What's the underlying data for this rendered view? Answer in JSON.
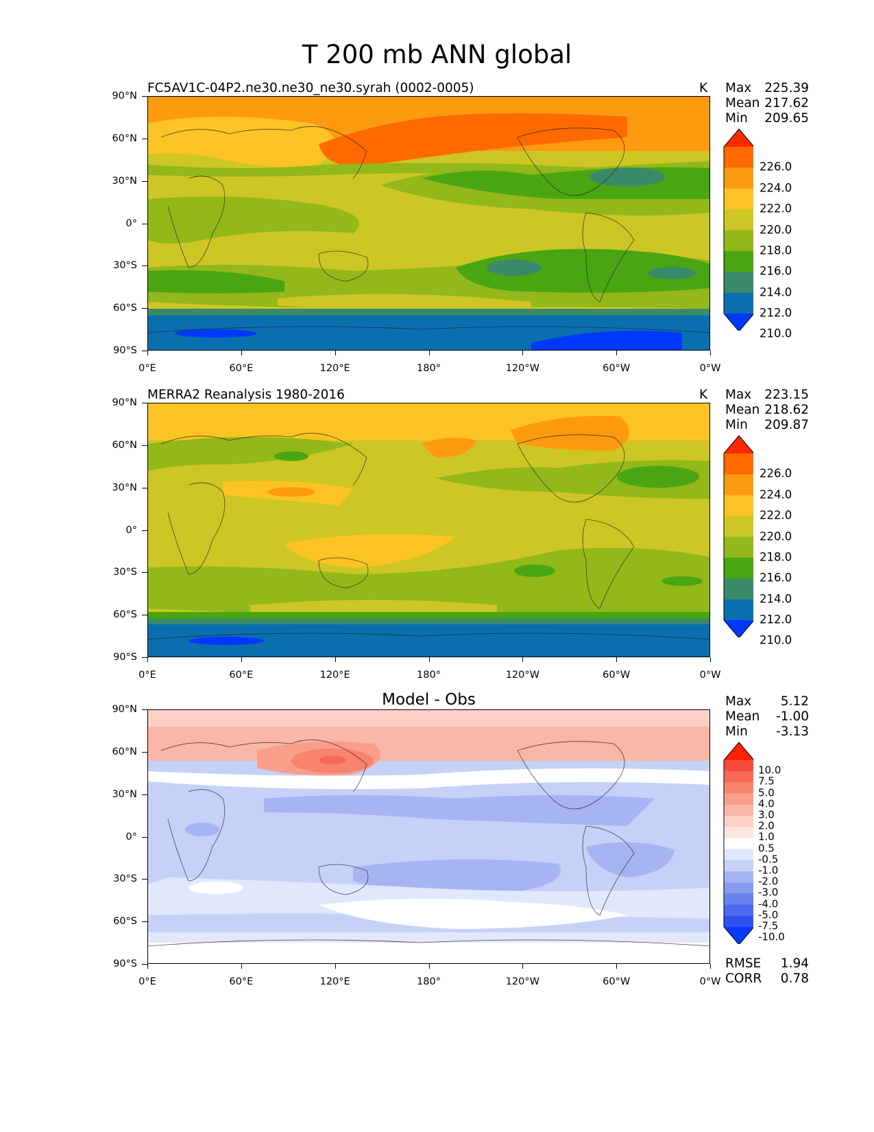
{
  "figure": {
    "title": "T 200 mb ANN global"
  },
  "axes": {
    "y_ticks": [
      "90°N",
      "60°N",
      "30°N",
      "0°",
      "30°S",
      "60°S",
      "90°S"
    ],
    "x_ticks": [
      "0°E",
      "60°E",
      "120°E",
      "180°",
      "120°W",
      "60°W",
      "0°W"
    ]
  },
  "panels": [
    {
      "id": "test",
      "title": "FC5AV1C-04P2.ne30.ne30_ne30.syrah (0002-0005)",
      "units": "K",
      "stats": {
        "max_label": "Max",
        "max": "225.39",
        "mean_label": "Mean",
        "mean": "217.62",
        "min_label": "Min",
        "min": "209.65"
      },
      "colorbar": {
        "labels": [
          "226.0",
          "224.0",
          "222.0",
          "220.0",
          "218.0",
          "216.0",
          "214.0",
          "212.0",
          "210.0"
        ],
        "colors": [
          "#ff2a00",
          "#ff6a00",
          "#fe9a10",
          "#fbc323",
          "#cdc624",
          "#92b81a",
          "#4aa512",
          "#3a8a6a",
          "#0a6fae",
          "#0038ff"
        ]
      },
      "dominant_color": "#cdc624"
    },
    {
      "id": "reference",
      "title": "MERRA2 Reanalysis 1980-2016",
      "units": "K",
      "stats": {
        "max_label": "Max",
        "max": "223.15",
        "mean_label": "Mean",
        "mean": "218.62",
        "min_label": "Min",
        "min": "209.87"
      },
      "colorbar": {
        "labels": [
          "226.0",
          "224.0",
          "222.0",
          "220.0",
          "218.0",
          "216.0",
          "214.0",
          "212.0",
          "210.0"
        ],
        "colors": [
          "#ff2a00",
          "#ff6a00",
          "#fe9a10",
          "#fbc323",
          "#cdc624",
          "#92b81a",
          "#4aa512",
          "#3a8a6a",
          "#0a6fae",
          "#0038ff"
        ]
      },
      "dominant_color": "#cdc624"
    },
    {
      "id": "difference",
      "title": "Model - Obs",
      "units": "",
      "stats": {
        "max_label": "Max",
        "max": "5.12",
        "mean_label": "Mean",
        "mean": "-1.00",
        "min_label": "Min",
        "min": "-3.13"
      },
      "colorbar": {
        "labels": [
          "10.0",
          "7.5",
          "5.0",
          "4.0",
          "3.0",
          "2.0",
          "1.0",
          "0.5",
          "-0.5",
          "-1.0",
          "-2.0",
          "-3.0",
          "-4.0",
          "-5.0",
          "-7.5",
          "-10.0"
        ],
        "colors": [
          "#ff2200",
          "#f74a3a",
          "#f86a55",
          "#f8846e",
          "#f99e8a",
          "#fab6a6",
          "#fcd0c4",
          "#fde6e0",
          "#ffffff",
          "#e2e8fb",
          "#c5d1f7",
          "#a6b5f2",
          "#889bf0",
          "#6a82ef",
          "#4c69ef",
          "#2e51f0",
          "#0a38ff"
        ]
      },
      "metrics": {
        "rmse_label": "RMSE",
        "rmse": "1.94",
        "corr_label": "CORR",
        "corr": "0.78"
      },
      "dominant_color": "#c5d1f7"
    }
  ]
}
